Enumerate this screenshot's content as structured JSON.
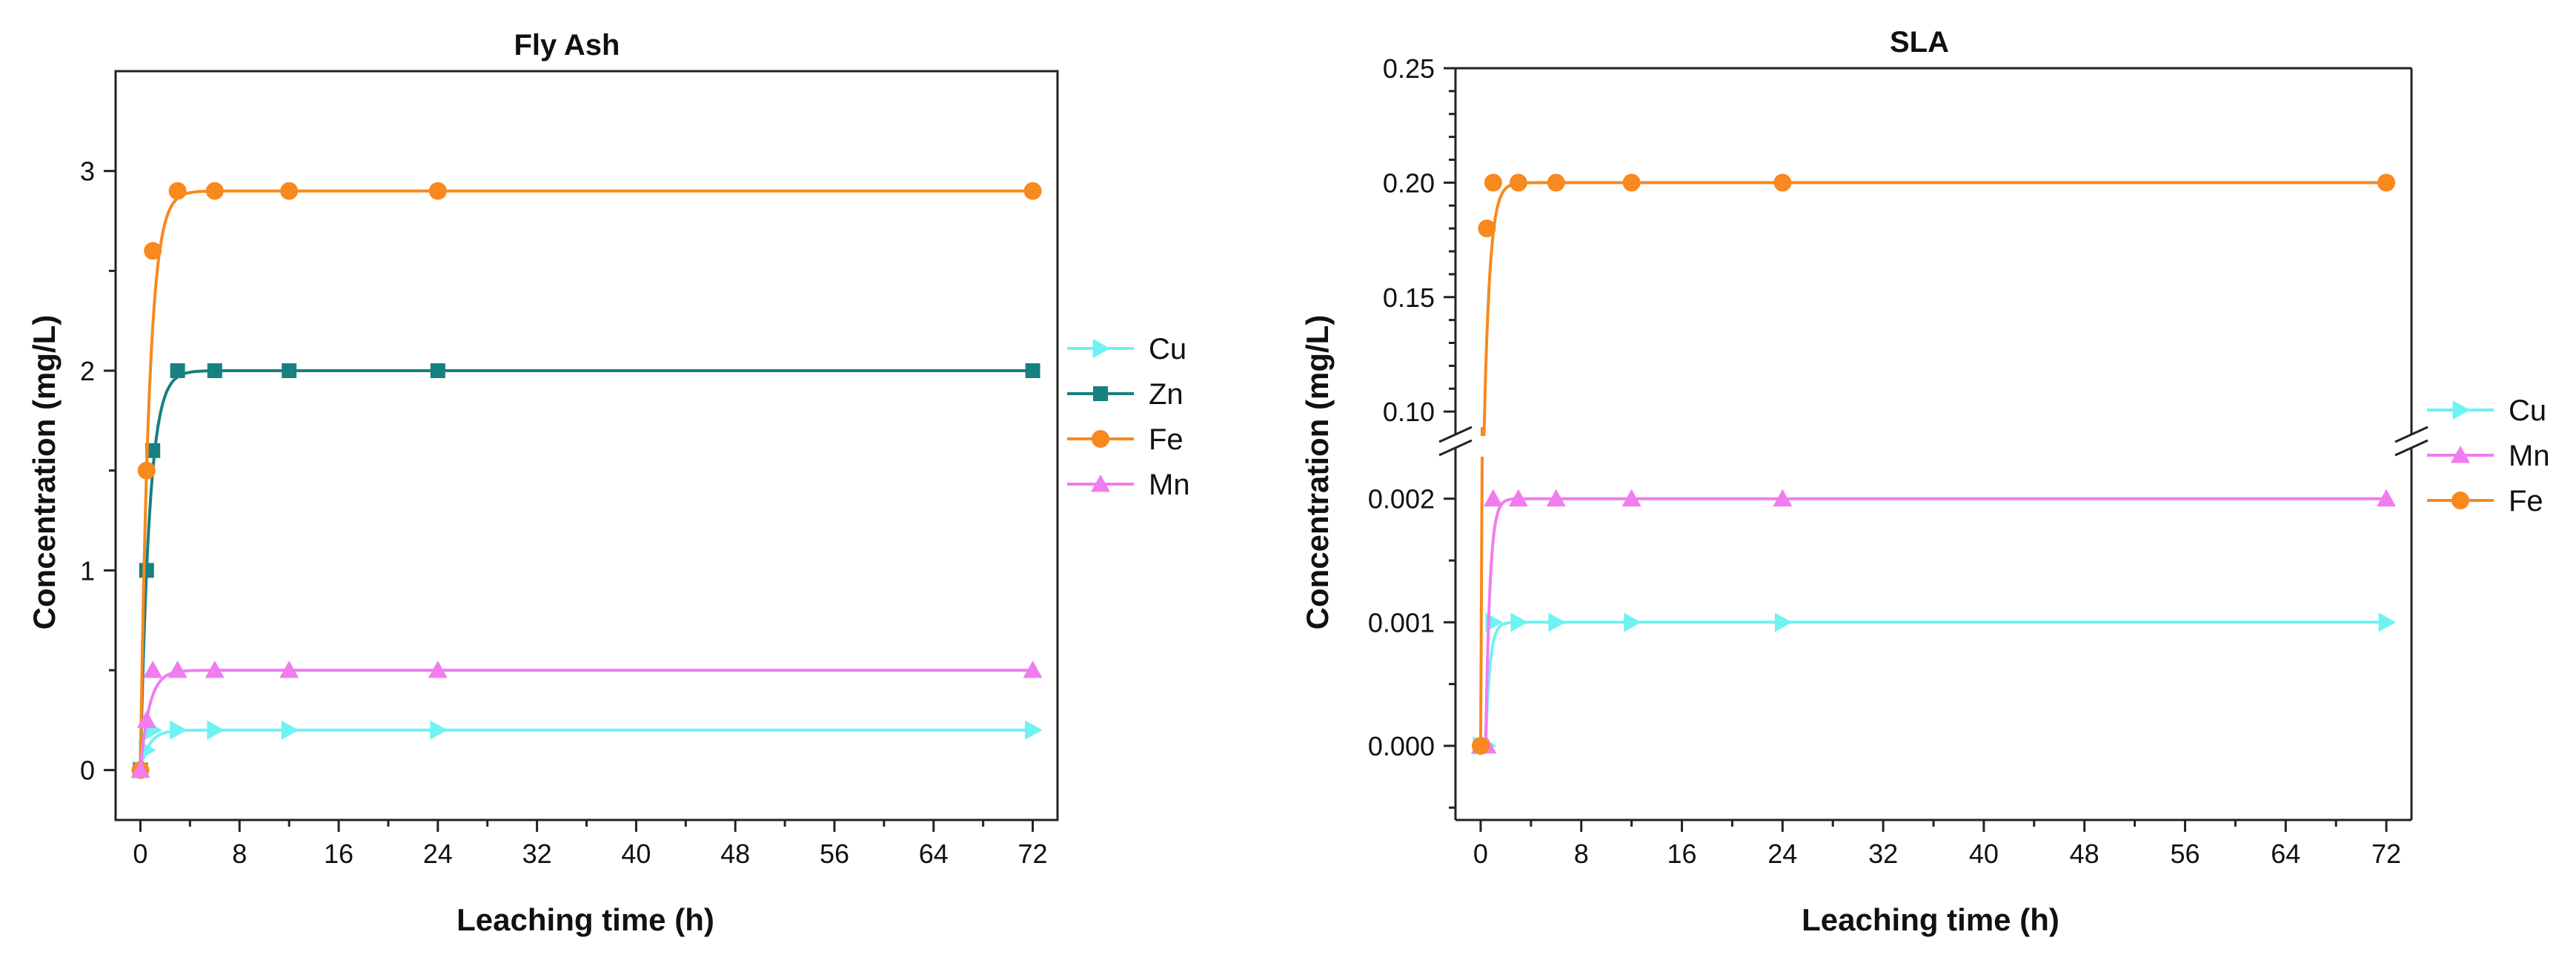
{
  "chart_data": [
    {
      "type": "line",
      "title": "Fly Ash",
      "xlabel": "Leaching time (h)",
      "ylabel": "Concentration (mg/L)",
      "xlim": [
        -2,
        74
      ],
      "ylim": [
        -0.25,
        3.5
      ],
      "x_ticks": [
        "0",
        "8",
        "16",
        "24",
        "32",
        "40",
        "48",
        "56",
        "64",
        "72"
      ],
      "y_ticks": [
        "0",
        "1",
        "2",
        "3"
      ],
      "legend_position": "right",
      "series": [
        {
          "name": "Cu",
          "color": "#6FF2F2",
          "marker": "triangle-right",
          "x": [
            0,
            0.5,
            1,
            3,
            6,
            12,
            24,
            72
          ],
          "y": [
            0,
            0.1,
            0.2,
            0.2,
            0.2,
            0.2,
            0.2,
            0.2
          ]
        },
        {
          "name": "Zn",
          "color": "#178080",
          "marker": "square",
          "x": [
            0,
            0.5,
            1,
            3,
            6,
            12,
            24,
            72
          ],
          "y": [
            0,
            1.0,
            1.6,
            2.0,
            2.0,
            2.0,
            2.0,
            2.0
          ]
        },
        {
          "name": "Fe",
          "color": "#F7891F",
          "marker": "circle",
          "x": [
            0,
            0.5,
            1,
            3,
            6,
            12,
            24,
            72
          ],
          "y": [
            0,
            1.5,
            2.6,
            2.9,
            2.9,
            2.9,
            2.9,
            2.9
          ]
        },
        {
          "name": "Mn",
          "color": "#F07CF0",
          "marker": "triangle-up",
          "x": [
            0,
            0.5,
            1,
            3,
            6,
            12,
            24,
            72
          ],
          "y": [
            0,
            0.25,
            0.5,
            0.5,
            0.5,
            0.5,
            0.5,
            0.5
          ]
        }
      ]
    },
    {
      "type": "line",
      "title": "SLA",
      "xlabel": "Leaching time (h)",
      "ylabel": "Concentration (mg/L)",
      "xlim": [
        -2,
        74
      ],
      "axis_break": true,
      "ylim_lower": [
        -0.0006,
        0.0024
      ],
      "ylim_upper": [
        0.09,
        0.25
      ],
      "x_ticks": [
        "0",
        "8",
        "16",
        "24",
        "32",
        "40",
        "48",
        "56",
        "64",
        "72"
      ],
      "y_ticks_lower": [
        "0.000",
        "0.001",
        "0.002"
      ],
      "y_ticks_upper": [
        "0.10",
        "0.15",
        "0.20",
        "0.25"
      ],
      "legend_position": "right",
      "series": [
        {
          "name": "Cu",
          "color": "#6FF2F2",
          "marker": "triangle-right",
          "x": [
            0,
            0.5,
            1,
            3,
            6,
            12,
            24,
            72
          ],
          "y": [
            0,
            0,
            0.001,
            0.001,
            0.001,
            0.001,
            0.001,
            0.001
          ]
        },
        {
          "name": "Mn",
          "color": "#F07CF0",
          "marker": "triangle-up",
          "x": [
            0,
            0.5,
            1,
            3,
            6,
            12,
            24,
            72
          ],
          "y": [
            0,
            0,
            0.002,
            0.002,
            0.002,
            0.002,
            0.002,
            0.002
          ]
        },
        {
          "name": "Fe",
          "color": "#F7891F",
          "marker": "circle",
          "x": [
            0,
            0.5,
            1,
            3,
            6,
            12,
            24,
            72
          ],
          "y": [
            0,
            0.18,
            0.2,
            0.2,
            0.2,
            0.2,
            0.2,
            0.2
          ]
        }
      ]
    }
  ]
}
